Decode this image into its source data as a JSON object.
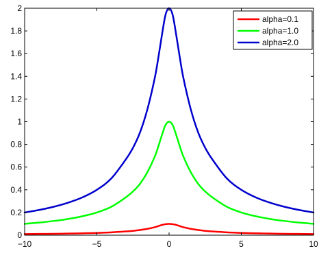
{
  "chart_data": {
    "type": "line",
    "title": "",
    "xlabel": "",
    "ylabel": "",
    "xlim": [
      -10,
      10
    ],
    "ylim": [
      0,
      2
    ],
    "x_ticks": [
      -10,
      -5,
      0,
      5,
      10
    ],
    "x_tick_labels": [
      "−10",
      "−5",
      "0",
      "5",
      "10"
    ],
    "y_ticks": [
      0,
      0.2,
      0.4,
      0.6,
      0.8,
      1,
      1.2,
      1.4,
      1.6,
      1.8,
      2
    ],
    "y_tick_labels": [
      "0",
      "0.2",
      "0.4",
      "0.6",
      "0.8",
      "1",
      "1.2",
      "1.4",
      "1.6",
      "1.8",
      "2"
    ],
    "grid": false,
    "legend_position": "top-right",
    "x": [
      -10,
      -9,
      -8,
      -7,
      -6,
      -5,
      -4,
      -3,
      -2.5,
      -2,
      -1.5,
      -1,
      -0.75,
      -0.5,
      -0.25,
      0,
      0.25,
      0.5,
      0.75,
      1,
      1.5,
      2,
      2.5,
      3,
      4,
      5,
      6,
      7,
      8,
      9,
      10
    ],
    "series": [
      {
        "name": "alpha=0.1",
        "color": "#ff0000",
        "values": [
          0.01,
          0.011,
          0.012,
          0.014,
          0.017,
          0.02,
          0.025,
          0.033,
          0.038,
          0.046,
          0.056,
          0.07,
          0.08,
          0.09,
          0.097,
          0.1,
          0.097,
          0.09,
          0.08,
          0.07,
          0.056,
          0.046,
          0.038,
          0.033,
          0.025,
          0.02,
          0.017,
          0.014,
          0.012,
          0.011,
          0.01
        ]
      },
      {
        "name": "alpha=1.0",
        "color": "#00ff00",
        "values": [
          0.1,
          0.111,
          0.125,
          0.143,
          0.167,
          0.2,
          0.25,
          0.333,
          0.385,
          0.455,
          0.556,
          0.69,
          0.78,
          0.88,
          0.97,
          1.0,
          0.97,
          0.88,
          0.78,
          0.69,
          0.556,
          0.455,
          0.385,
          0.333,
          0.25,
          0.2,
          0.167,
          0.143,
          0.125,
          0.111,
          0.1
        ]
      },
      {
        "name": "alpha=2.0",
        "color": "#0000cc",
        "values": [
          0.2,
          0.222,
          0.25,
          0.286,
          0.333,
          0.4,
          0.5,
          0.667,
          0.77,
          0.91,
          1.11,
          1.38,
          1.56,
          1.76,
          1.94,
          2.0,
          1.94,
          1.76,
          1.56,
          1.38,
          1.11,
          0.91,
          0.77,
          0.667,
          0.5,
          0.4,
          0.333,
          0.286,
          0.25,
          0.222,
          0.2
        ]
      }
    ]
  }
}
